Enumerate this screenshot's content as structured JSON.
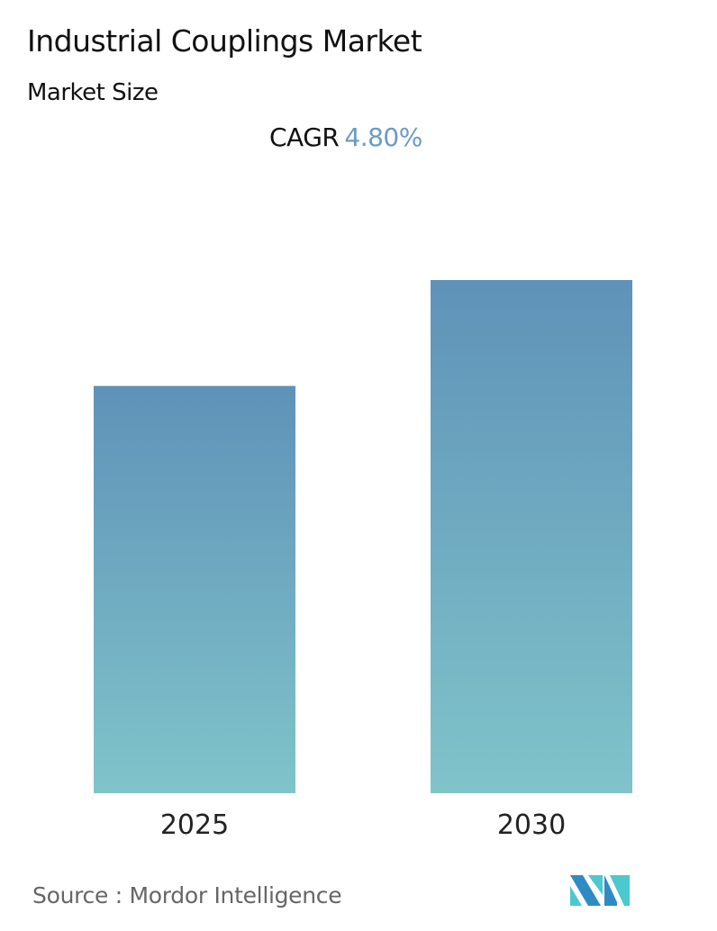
{
  "header": {
    "title": "Industrial Couplings Market",
    "subtitle": "Market Size",
    "cagr_label": "CAGR",
    "cagr_value": "4.80%"
  },
  "chart_data": {
    "type": "bar",
    "title": "Industrial Couplings Market",
    "subtitle": "Market Size",
    "categories": [
      "2025",
      "2030"
    ],
    "values": [
      1.0,
      1.26
    ],
    "value_note_unit": "relative (no values printed)",
    "xlabel": "",
    "ylabel": "",
    "ylim": [
      0,
      1.26
    ],
    "grid": false,
    "colors": {
      "bar_top": "#5f92b8",
      "bar_bottom": "#80c4ca",
      "cagr": "#6a9bc3"
    }
  },
  "footer": {
    "source": "Source :  Mordor Intelligence",
    "logo_colors": [
      "#2f8bc4",
      "#4cc8cf"
    ]
  }
}
